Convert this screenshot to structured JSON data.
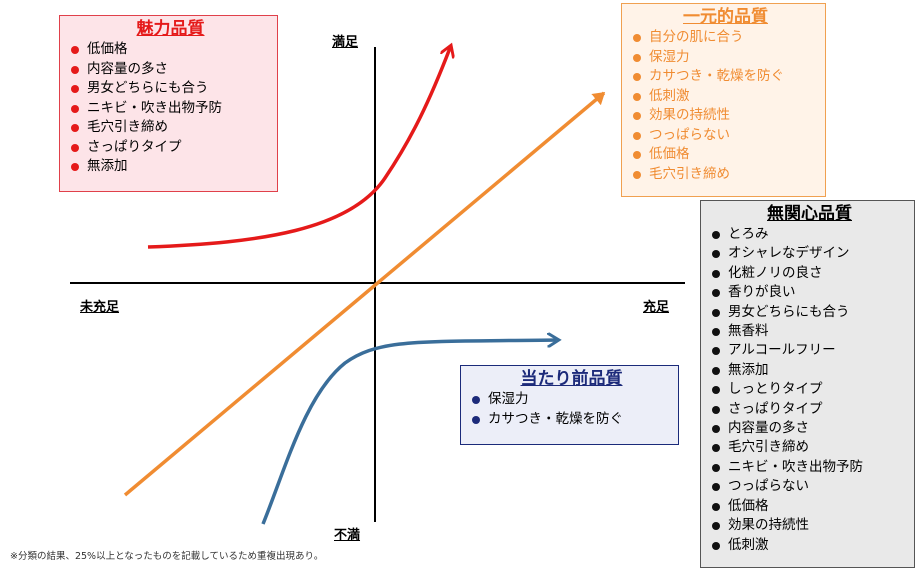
{
  "axes": {
    "top": "満足",
    "bottom": "不満",
    "left": "未充足",
    "right": "充足"
  },
  "boxes": {
    "attractive": {
      "title": "魅力品質",
      "items": [
        "低価格",
        "内容量の多さ",
        "男女どちらにも合う",
        "ニキビ・吹き出物予防",
        "毛穴引き締め",
        "さっぱりタイプ",
        "無添加"
      ]
    },
    "one_dimensional": {
      "title": "一元的品質",
      "items": [
        "自分の肌に合う",
        "保湿力",
        "カサつき・乾燥を防ぐ",
        "低刺激",
        "効果の持続性",
        "つっぱらない",
        "低価格",
        "毛穴引き締め"
      ]
    },
    "indifferent": {
      "title": "無関心品質",
      "items": [
        "とろみ",
        "オシャレなデザイン",
        "化粧ノリの良さ",
        "香りが良い",
        "男女どちらにも合う",
        "無香料",
        "アルコールフリー",
        "無添加",
        "しっとりタイプ",
        "さっぱりタイプ",
        "内容量の多さ",
        "毛穴引き締め",
        "ニキビ・吹き出物予防",
        "つっぱらない",
        "低価格",
        "効果の持続性",
        "低刺激"
      ]
    },
    "must_be": {
      "title": "当たり前品質",
      "items": [
        "保湿力",
        "カサつき・乾燥を防ぐ"
      ]
    }
  },
  "colors": {
    "attractive": "#e51a1a",
    "one_dimensional": "#f08c32",
    "must_be": "#3a6e9a",
    "axis": "#000000"
  },
  "footnote": "※分類の結果、25%以上となったものを記載しているため重複出現あり。"
}
